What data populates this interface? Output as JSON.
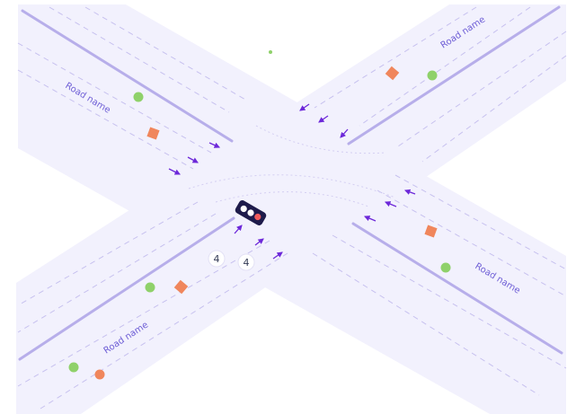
{
  "colors": {
    "road_fill": "#f2f1fd",
    "median": "#b7aeea",
    "lane_dash": "#c7c1ef",
    "arrow": "#6d28d9",
    "label": "#6f5fd6",
    "green_marker": "#8fd16a",
    "orange_marker": "#f0865c",
    "traffic_light_body": "#1e1b4b",
    "light_on": "#f15b5b",
    "light_off": "#ffffff"
  },
  "roads": {
    "nw_label": "Road name",
    "ne_label": "Road name",
    "se_label": "Road name",
    "sw_label": "Road name"
  },
  "badges": {
    "left_value": "4",
    "right_value": "4"
  },
  "icons": {
    "traffic_light": "traffic-light-icon",
    "lane_arrow": "lane-arrow-icon",
    "green_marker": "green-dot-marker",
    "orange_marker": "orange-diamond-marker"
  }
}
